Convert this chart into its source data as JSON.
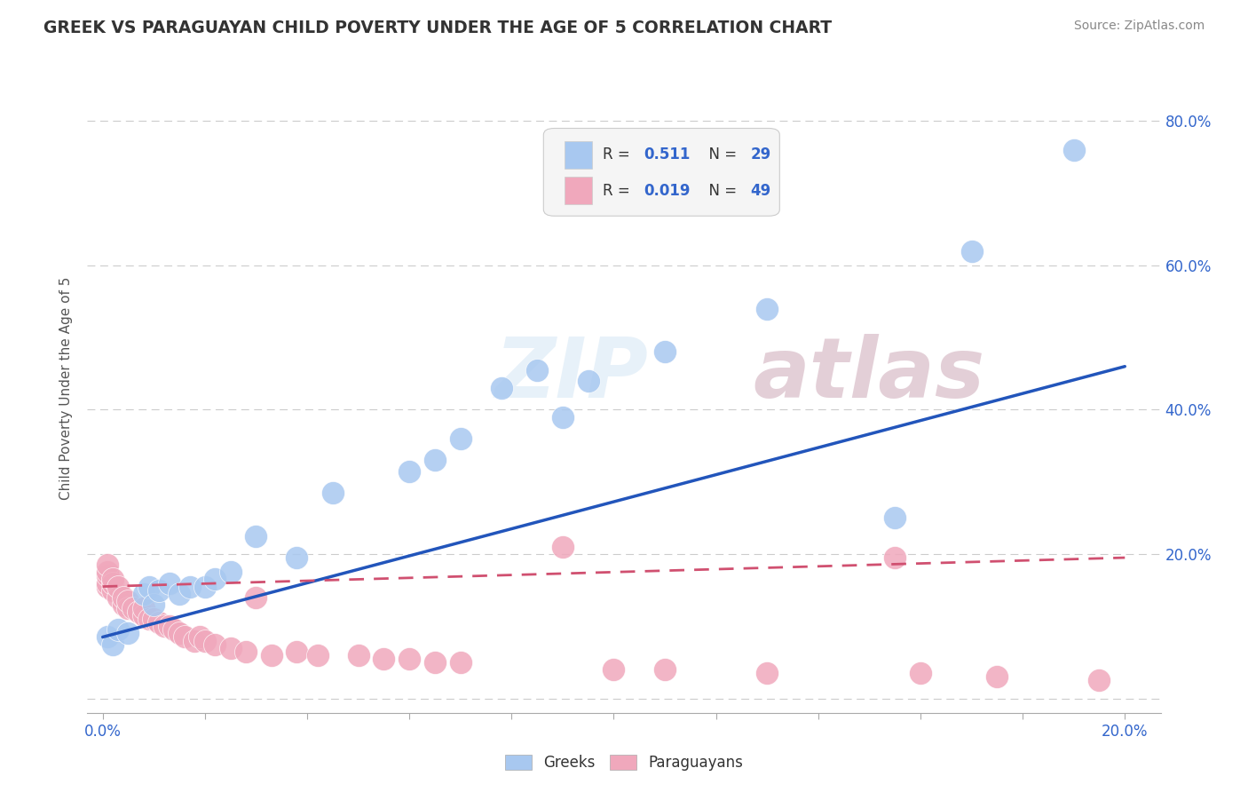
{
  "title": "GREEK VS PARAGUAYAN CHILD POVERTY UNDER THE AGE OF 5 CORRELATION CHART",
  "source": "Source: ZipAtlas.com",
  "ylabel": "Child Poverty Under the Age of 5",
  "xlim": [
    -0.003,
    0.207
  ],
  "ylim": [
    -0.02,
    0.88
  ],
  "xtick_positions": [
    0.0,
    0.02,
    0.04,
    0.06,
    0.08,
    0.1,
    0.12,
    0.14,
    0.16,
    0.18,
    0.2
  ],
  "xticklabels": [
    "0.0%",
    "",
    "",
    "",
    "",
    "",
    "",
    "",
    "",
    "",
    "20.0%"
  ],
  "ytick_positions": [
    0.0,
    0.2,
    0.4,
    0.6,
    0.8
  ],
  "ytick_labels": [
    "",
    "20.0%",
    "40.0%",
    "60.0%",
    "80.0%"
  ],
  "greek_color": "#A8C8F0",
  "para_color": "#F0A8BC",
  "greek_line_color": "#2255BB",
  "para_line_color": "#D05070",
  "watermark_color": "#D8E8F5",
  "watermark_color2": "#C8A0B0",
  "greek_points_x": [
    0.001,
    0.002,
    0.003,
    0.005,
    0.008,
    0.009,
    0.01,
    0.011,
    0.013,
    0.015,
    0.017,
    0.02,
    0.022,
    0.025,
    0.03,
    0.038,
    0.045,
    0.06,
    0.065,
    0.07,
    0.078,
    0.085,
    0.09,
    0.095,
    0.11,
    0.13,
    0.155,
    0.17,
    0.19
  ],
  "greek_points_y": [
    0.085,
    0.075,
    0.095,
    0.09,
    0.145,
    0.155,
    0.13,
    0.15,
    0.16,
    0.145,
    0.155,
    0.155,
    0.165,
    0.175,
    0.225,
    0.195,
    0.285,
    0.315,
    0.33,
    0.36,
    0.43,
    0.455,
    0.39,
    0.44,
    0.48,
    0.54,
    0.25,
    0.62,
    0.76
  ],
  "para_points_x": [
    0.001,
    0.001,
    0.001,
    0.001,
    0.001,
    0.002,
    0.002,
    0.002,
    0.003,
    0.003,
    0.004,
    0.004,
    0.005,
    0.005,
    0.006,
    0.007,
    0.008,
    0.008,
    0.009,
    0.01,
    0.011,
    0.012,
    0.013,
    0.014,
    0.015,
    0.016,
    0.018,
    0.019,
    0.02,
    0.022,
    0.025,
    0.028,
    0.03,
    0.033,
    0.038,
    0.042,
    0.05,
    0.055,
    0.06,
    0.065,
    0.07,
    0.09,
    0.1,
    0.11,
    0.13,
    0.155,
    0.16,
    0.175,
    0.195
  ],
  "para_points_y": [
    0.155,
    0.16,
    0.17,
    0.175,
    0.185,
    0.15,
    0.16,
    0.165,
    0.14,
    0.155,
    0.13,
    0.14,
    0.125,
    0.135,
    0.125,
    0.12,
    0.115,
    0.125,
    0.11,
    0.11,
    0.105,
    0.1,
    0.1,
    0.095,
    0.09,
    0.085,
    0.08,
    0.085,
    0.08,
    0.075,
    0.07,
    0.065,
    0.14,
    0.06,
    0.065,
    0.06,
    0.06,
    0.055,
    0.055,
    0.05,
    0.05,
    0.21,
    0.04,
    0.04,
    0.035,
    0.195,
    0.035,
    0.03,
    0.025
  ],
  "greek_line_x": [
    0.0,
    0.2
  ],
  "greek_line_y": [
    0.085,
    0.46
  ],
  "para_line_x": [
    0.0,
    0.2
  ],
  "para_line_y": [
    0.155,
    0.195
  ]
}
